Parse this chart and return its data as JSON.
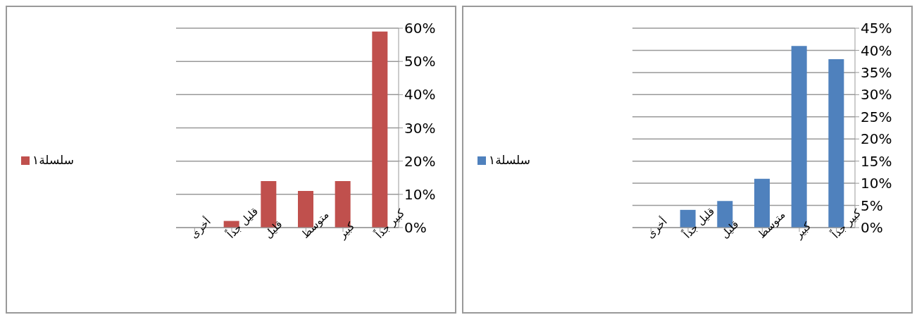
{
  "chart_data": [
    {
      "type": "bar",
      "categories": [
        "أخرى",
        "قليل جداً",
        "قليل",
        "متوسط",
        "كبير",
        "كبير جداً"
      ],
      "series": [
        {
          "name": "سلسلة١",
          "color": "#c0504d",
          "values": [
            0,
            2,
            14,
            11,
            14,
            59
          ]
        }
      ],
      "ylim": [
        0,
        60
      ],
      "yticks": [
        {
          "value": 0,
          "label": "0%"
        },
        {
          "value": 10,
          "label": "10%"
        },
        {
          "value": 20,
          "label": "20%"
        },
        {
          "value": 30,
          "label": "30%"
        },
        {
          "value": 40,
          "label": "40%"
        },
        {
          "value": 50,
          "label": "50%"
        },
        {
          "value": 60,
          "label": "60%"
        }
      ],
      "grid": "y",
      "legend": "left"
    },
    {
      "type": "bar",
      "categories": [
        "أخرى",
        "قليل جداً",
        "قليل",
        "متوسط",
        "كبير",
        "كبير جداً"
      ],
      "series": [
        {
          "name": "سلسلة١",
          "color": "#4f81bd",
          "values": [
            0,
            4,
            6,
            11,
            41,
            38
          ]
        }
      ],
      "ylim": [
        0,
        45
      ],
      "yticks": [
        {
          "value": 0,
          "label": "0%"
        },
        {
          "value": 5,
          "label": "5%"
        },
        {
          "value": 10,
          "label": "10%"
        },
        {
          "value": 15,
          "label": "15%"
        },
        {
          "value": 20,
          "label": "20%"
        },
        {
          "value": 25,
          "label": "25%"
        },
        {
          "value": 30,
          "label": "30%"
        },
        {
          "value": 35,
          "label": "35%"
        },
        {
          "value": 40,
          "label": "40%"
        },
        {
          "value": 45,
          "label": "45%"
        }
      ],
      "grid": "y",
      "legend": "left"
    }
  ]
}
